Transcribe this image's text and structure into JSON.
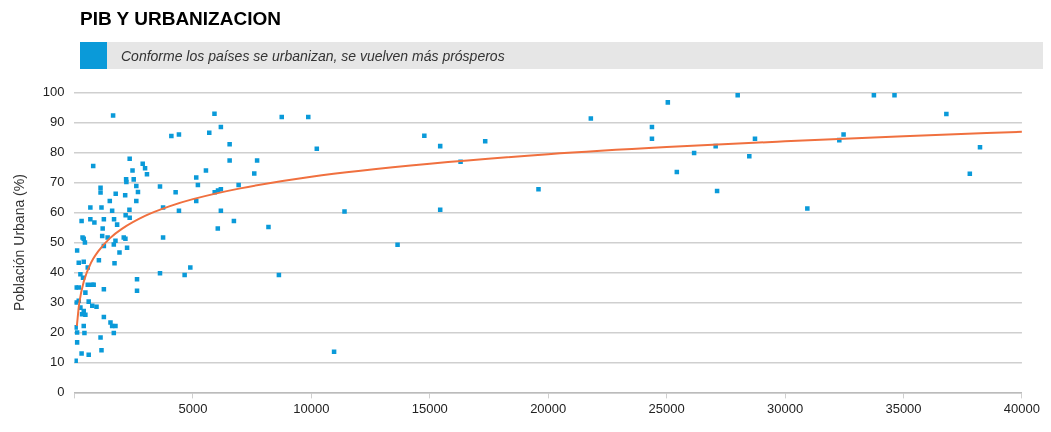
{
  "chart_data": {
    "type": "scatter",
    "title": "PIB Y URBANIZACION",
    "subtitle": "Conforme los países se urbanizan, se vuelven más prósperos",
    "ylabel": "Población Urbana (%)",
    "xlim": [
      0,
      40000
    ],
    "xticks": [
      {
        "value": 0,
        "label": null
      },
      5000,
      10000,
      15000,
      20000,
      25000,
      30000,
      35000,
      40000
    ],
    "ylim": [
      0,
      100
    ],
    "yticks": [
      0,
      10,
      20,
      30,
      40,
      50,
      60,
      70,
      80,
      90,
      100
    ],
    "grid": "y",
    "legend": false,
    "series": [
      {
        "marker": "square",
        "color": "#0a9ad9",
        "x": [
          1630,
          5910,
          6180,
          4090,
          4410,
          5690,
          6550,
          6550,
          7710,
          7590,
          5550,
          6930,
          5140,
          5210,
          3610,
          4270,
          5920,
          6060,
          6180,
          5140,
          3740,
          4410,
          6180,
          6730,
          8190,
          6050,
          3740,
          3610,
          4650,
          4890,
          8630,
          8750,
          9870,
          2330,
          2450,
          2500,
          2180,
          2190,
          2880,
          2980,
          3060,
          2610,
          2680,
          2140,
          2610,
          1740,
          1490,
          1590,
          2320,
          2160,
          2330,
          1670,
          1800,
          1100,
          1100,
          1140,
          670,
          670,
          840,
          300,
          790,
          1240,
          1190,
          1170,
          1400,
          1240,
          1730,
          2080,
          2150,
          1660,
          2220,
          1900,
          1690,
          2640,
          2640,
          1030,
          340,
          390,
          440,
          110,
          180,
          390,
          560,
          250,
          360,
          50,
          180,
          560,
          750,
          810,
          460,
          50,
          180,
          600,
          750,
          930,
          250,
          390,
          460,
          320,
          1240,
          1240,
          1520,
          1590,
          1730,
          1660,
          50,
          110,
          390,
          420,
          110,
          1100,
          1140,
          300,
          600,
          50,
          10230,
          11400,
          10960,
          13640,
          14770,
          15440,
          15440,
          16300,
          17340,
          19590,
          21800,
          25050,
          24380,
          24380,
          25430,
          26160,
          27070,
          27130,
          28000,
          28490,
          28730,
          30940,
          32290,
          32470,
          33750,
          34620,
          36810,
          37800,
          38230
        ],
        "values": [
          92.4,
          93,
          88.6,
          85.6,
          86.1,
          86.7,
          82.8,
          77.4,
          77.4,
          73.1,
          74.1,
          69.2,
          71.7,
          69.2,
          68.7,
          66.8,
          66.8,
          67.4,
          67.8,
          63.9,
          61.7,
          60.6,
          60.6,
          57.2,
          55.2,
          54.7,
          51.7,
          39.8,
          39.2,
          41.7,
          39.2,
          91.9,
          91.9,
          78,
          74.1,
          71.1,
          71.1,
          70.2,
          76.3,
          74.8,
          72.8,
          68.9,
          66.9,
          65.8,
          63.9,
          66.3,
          63.9,
          60.6,
          61,
          59.1,
          58.3,
          57.8,
          56,
          68.3,
          66.7,
          61.7,
          61.7,
          57.8,
          56.7,
          57.2,
          75.6,
          57.8,
          54.7,
          52.2,
          51.7,
          48.9,
          50.6,
          51.7,
          51.3,
          49.4,
          48.3,
          46.7,
          43.1,
          37.8,
          33.9,
          44.1,
          51.7,
          51.3,
          50,
          47.4,
          43.3,
          43.6,
          41.7,
          39.4,
          38.3,
          35,
          35,
          35.9,
          35.9,
          35.9,
          33.3,
          30,
          30.6,
          30.3,
          28.9,
          28.6,
          28.3,
          27.2,
          25.9,
          26.1,
          34.4,
          25.2,
          23.3,
          22.2,
          22.2,
          19.8,
          21.7,
          20,
          22.2,
          19.8,
          16.7,
          18.3,
          14.1,
          13,
          12.6,
          10.6,
          81.3,
          60.4,
          13.6,
          49.3,
          85.7,
          82.2,
          61,
          77,
          83.8,
          67.8,
          91.4,
          96.8,
          88.6,
          84.7,
          73.6,
          79.9,
          82.2,
          67.2,
          99.2,
          78.8,
          84.7,
          61.4,
          84.2,
          86.1,
          99.2,
          99.2,
          92.9,
          73,
          81.8
        ]
      },
      {
        "type": "line",
        "marker": "none",
        "line_style": "solid",
        "color": "#f0703f",
        "x": [
          100,
          200,
          400,
          700,
          1000,
          1500,
          2000,
          3000,
          4000,
          5000,
          7000,
          10000,
          15000,
          20000,
          25000,
          30000,
          35000,
          40000
        ],
        "values": [
          22.2,
          29.7,
          37.2,
          43.3,
          47.1,
          51.5,
          54.6,
          59,
          62.1,
          64.5,
          68.1,
          72,
          76.3,
          79.5,
          81.9,
          83.8,
          85.5,
          87
        ]
      }
    ]
  }
}
